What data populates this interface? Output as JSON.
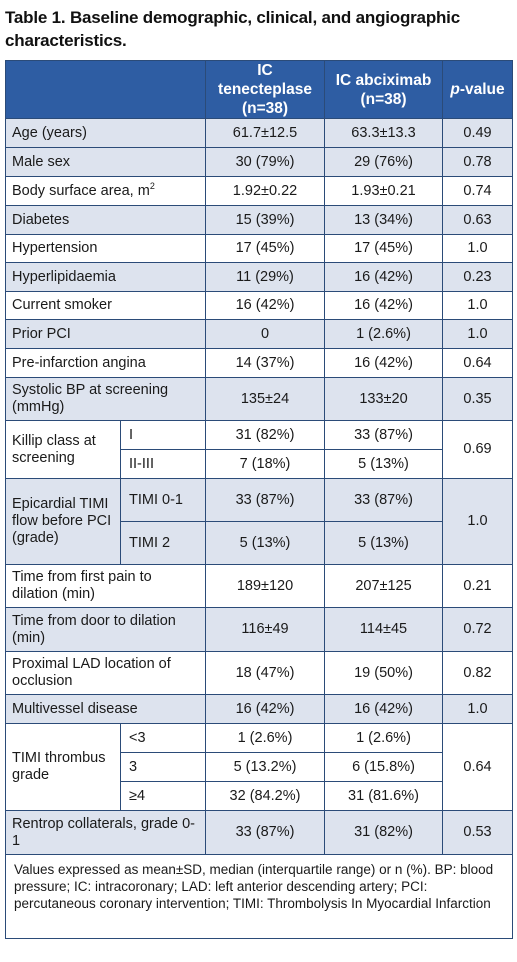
{
  "title": "Table 1. Baseline demographic, clinical, and angiographic characteristics.",
  "header": {
    "col1_line1": "IC tenecteplase",
    "col1_line2": "(n=38)",
    "col2_line1": "IC abciximab",
    "col2_line2": "(n=38)",
    "pvalue_italic": "p",
    "pvalue_rest": "-value"
  },
  "rows": [
    {
      "label": "Age (years)",
      "a": "61.7±12.5",
      "b": "63.3±13.3",
      "p": "0.49"
    },
    {
      "label": "Male sex",
      "a": "30 (79%)",
      "b": "29 (76%)",
      "p": "0.78"
    },
    {
      "label": "Body surface area, m",
      "sup": "2",
      "a": "1.92±0.22",
      "b": "1.93±0.21",
      "p": "0.74"
    },
    {
      "label": "Diabetes",
      "a": "15 (39%)",
      "b": "13 (34%)",
      "p": "0.63"
    },
    {
      "label": "Hypertension",
      "a": "17 (45%)",
      "b": "17 (45%)",
      "p": "1.0"
    },
    {
      "label": "Hyperlipidaemia",
      "a": "11 (29%)",
      "b": "16 (42%)",
      "p": "0.23"
    },
    {
      "label": "Current smoker",
      "a": "16 (42%)",
      "b": "16 (42%)",
      "p": "1.0"
    },
    {
      "label": "Prior PCI",
      "a": "0",
      "b": "1 (2.6%)",
      "p": "1.0"
    },
    {
      "label": "Pre-infarction angina",
      "a": "14 (37%)",
      "b": "16 (42%)",
      "p": "0.64"
    },
    {
      "label": "Systolic BP at screening (mmHg)",
      "a": "135±24",
      "b": "133±20",
      "p": "0.35"
    }
  ],
  "killip": {
    "label": "Killip class at screening",
    "p": "0.69",
    "subs": [
      {
        "label": "I",
        "a": "31 (82%)",
        "b": "33 (87%)"
      },
      {
        "label": "II-III",
        "a": "7 (18%)",
        "b": "5 (13%)"
      }
    ]
  },
  "timi_flow": {
    "label": "Epicardial TIMI flow before PCI (grade)",
    "p": "1.0",
    "subs": [
      {
        "label": "TIMI 0-1",
        "a": "33 (87%)",
        "b": "33 (87%)"
      },
      {
        "label": "TIMI 2",
        "a": "5 (13%)",
        "b": "5 (13%)"
      }
    ]
  },
  "rows2": [
    {
      "label": "Time from first pain to dilation (min)",
      "a": "189±120",
      "b": "207±125",
      "p": "0.21"
    },
    {
      "label": "Time from door to dilation (min)",
      "a": "116±49",
      "b": "114±45",
      "p": "0.72"
    },
    {
      "label": "Proximal LAD location of occlusion",
      "a": "18 (47%)",
      "b": "19 (50%)",
      "p": "0.82"
    },
    {
      "label": "Multivessel disease",
      "a": "16 (42%)",
      "b": "16 (42%)",
      "p": "1.0"
    }
  ],
  "thrombus": {
    "label": "TIMI thrombus grade",
    "p": "0.64",
    "subs": [
      {
        "label": "<3",
        "a": "1 (2.6%)",
        "b": "1 (2.6%)"
      },
      {
        "label": "3",
        "a": "5 (13.2%)",
        "b": "6 (15.8%)"
      },
      {
        "label": "≥4",
        "a": "32 (84.2%)",
        "b": "31 (81.6%)"
      }
    ]
  },
  "rentrop": {
    "label": "Rentrop collaterals, grade 0-1",
    "a": "33 (87%)",
    "b": "31 (82%)",
    "p": "0.53"
  },
  "footnote": "Values expressed as mean±SD, median (interquartile range) or n (%). BP: blood pressure; IC: intracoronary; LAD: left anterior descending artery; PCI: percutaneous coronary intervention; TIMI: Thrombolysis In Myocardial Infarction"
}
